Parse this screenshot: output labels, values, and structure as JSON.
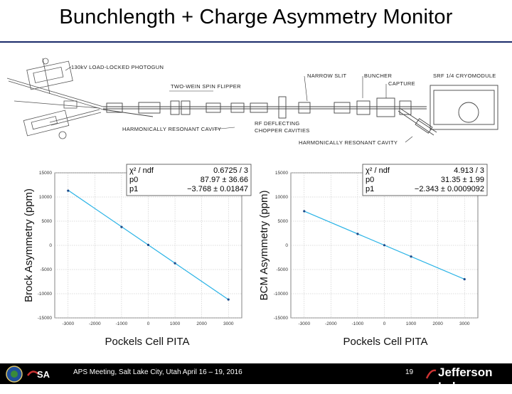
{
  "slide": {
    "title": "Bunchlength + Charge Asymmetry Monitor",
    "footer": "APS Meeting, Salt Lake City, Utah April 16 – 19, 2016",
    "page_number": "19",
    "lab_name": "Jefferson Lab"
  },
  "diagram": {
    "labels": {
      "photogun": "130kV LOAD-LOCKED PHOTOGUN",
      "spin_flipper": "TWO-WEIN SPIN FLIPPER",
      "harmonic_left": "HARMONICALLY RESONANT CAVITY",
      "rf_chopper_1": "RF DEFLECTING",
      "rf_chopper_2": "CHOPPER CAVITIES",
      "narrow_slit": "NARROW SLIT",
      "buncher": "BUNCHER",
      "capture": "CAPTURE",
      "cryomodule": "SRF 1/4 CRYOMODULE",
      "harmonic_right": "HARMONICALLY RESONANT CAVITY"
    }
  },
  "chart_data": [
    {
      "type": "scatter",
      "xlabel": "Pockels Cell PITA",
      "ylabel": "Brock Asymmetry (ppm)",
      "xlim": [
        -3500,
        3500
      ],
      "ylim": [
        -15000,
        15000
      ],
      "x_ticks": [
        "-3000",
        "-2000",
        "-1000",
        "0",
        "1000",
        "2000",
        "3000"
      ],
      "y_ticks": [
        "15000",
        "10000",
        "5000",
        "0",
        "-5000",
        "-10000",
        "-15000"
      ],
      "grid": true,
      "points": [
        {
          "x": -3000,
          "y": 11300
        },
        {
          "x": -1000,
          "y": 3800
        },
        {
          "x": 0,
          "y": 90
        },
        {
          "x": 1000,
          "y": -3700
        },
        {
          "x": 3000,
          "y": -11200
        }
      ],
      "fit": {
        "p0": 87.97,
        "p1": -3.768
      },
      "stats": [
        {
          "label": "χ² / ndf",
          "value": "0.6725 / 3"
        },
        {
          "label": "p0",
          "value": "87.97 ± 36.66"
        },
        {
          "label": "p1",
          "value": "−3.768 ± 0.01847"
        }
      ],
      "colors": {
        "line": "#29b3e6",
        "marker": "#1a4a8a"
      }
    },
    {
      "type": "scatter",
      "xlabel": "Pockels Cell PITA",
      "ylabel": "BCM Asymmetry (ppm)",
      "xlim": [
        -3500,
        3500
      ],
      "ylim": [
        -15000,
        15000
      ],
      "x_ticks": [
        "-3000",
        "-2000",
        "-1000",
        "0",
        "1000",
        "2000",
        "3000"
      ],
      "y_ticks": [
        "15000",
        "10000",
        "5000",
        "0",
        "-5000",
        "-10000",
        "-15000"
      ],
      "grid": true,
      "points": [
        {
          "x": -3000,
          "y": 7060
        },
        {
          "x": -1000,
          "y": 2370
        },
        {
          "x": 0,
          "y": 30
        },
        {
          "x": 1000,
          "y": -2310
        },
        {
          "x": 3000,
          "y": -7000
        }
      ],
      "fit": {
        "p0": 31.35,
        "p1": -2.343
      },
      "stats": [
        {
          "label": "χ² / ndf",
          "value": "4.913 / 3"
        },
        {
          "label": "p0",
          "value": "31.35 ± 1.99"
        },
        {
          "label": "p1",
          "value": "−2.343 ± 0.0009092"
        }
      ],
      "colors": {
        "line": "#29b3e6",
        "marker": "#1a4a8a"
      }
    }
  ]
}
